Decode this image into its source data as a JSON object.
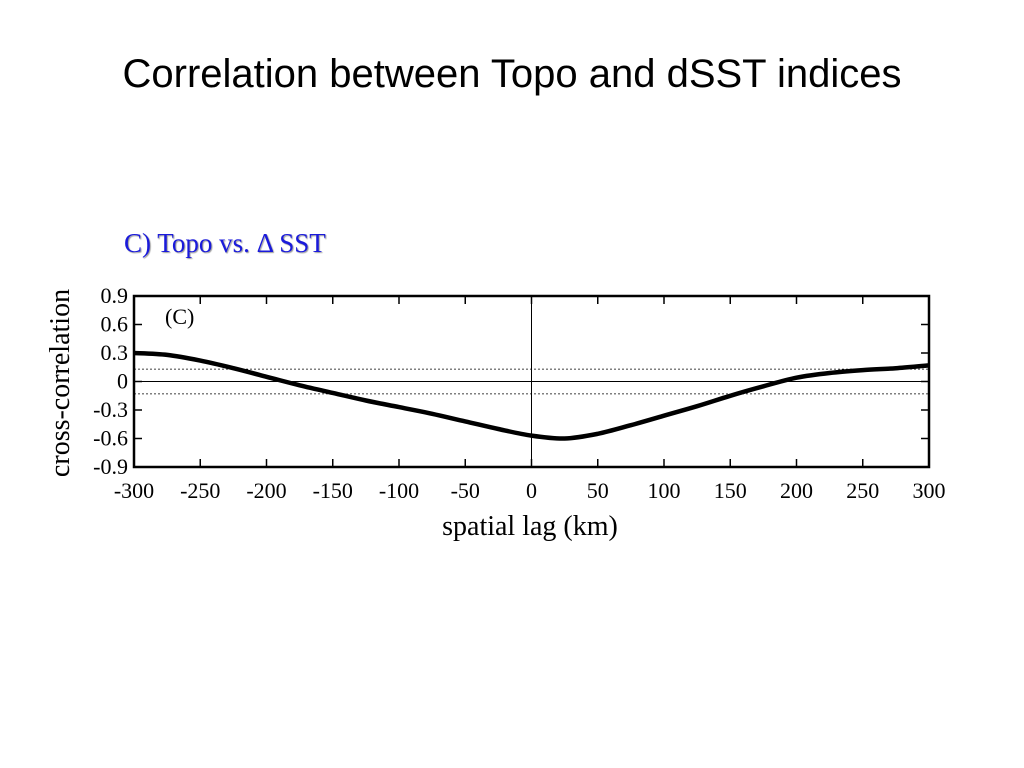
{
  "slide": {
    "title": "Correlation between Topo and dSST indices"
  },
  "colors": {
    "panel_title": "#1a1adb",
    "curve": "#000000",
    "background": "#ffffff"
  },
  "chart_data": {
    "type": "line",
    "title": "C) Topo vs. Δ SST",
    "panel_label": "(C)",
    "xlabel": "spatial lag (km)",
    "ylabel": "cross-correlation",
    "xlim": [
      -300,
      300
    ],
    "ylim": [
      -0.9,
      0.9
    ],
    "xticks": [
      -300,
      -250,
      -200,
      -150,
      -100,
      -50,
      0,
      50,
      100,
      150,
      200,
      250,
      300
    ],
    "yticks": [
      0.9,
      0.6,
      0.3,
      0,
      -0.3,
      -0.6,
      -0.9
    ],
    "xtick_labels": [
      "-300",
      "-250",
      "-200",
      "-150",
      "-100",
      "-50",
      "0",
      "50",
      "100",
      "150",
      "200",
      "250",
      "300"
    ],
    "ytick_labels": [
      "0.9",
      "0.6",
      "0.3",
      "0",
      "-0.3",
      "-0.6",
      "-0.9"
    ],
    "reference_lines": {
      "zero_y": 0,
      "zero_x": 0,
      "significance": [
        0.13,
        -0.13
      ]
    },
    "grid": false,
    "series": [
      {
        "x": [
          -300,
          -275,
          -250,
          -225,
          -200,
          -175,
          -150,
          -125,
          -100,
          -75,
          -50,
          -25,
          0,
          25,
          50,
          75,
          100,
          125,
          150,
          175,
          200,
          225,
          250,
          275,
          300
        ],
        "y": [
          0.3,
          0.28,
          0.22,
          0.14,
          0.05,
          -0.04,
          -0.12,
          -0.2,
          -0.27,
          -0.34,
          -0.42,
          -0.5,
          -0.57,
          -0.6,
          -0.55,
          -0.46,
          -0.36,
          -0.26,
          -0.15,
          -0.05,
          0.04,
          0.09,
          0.12,
          0.14,
          0.17
        ]
      }
    ]
  }
}
